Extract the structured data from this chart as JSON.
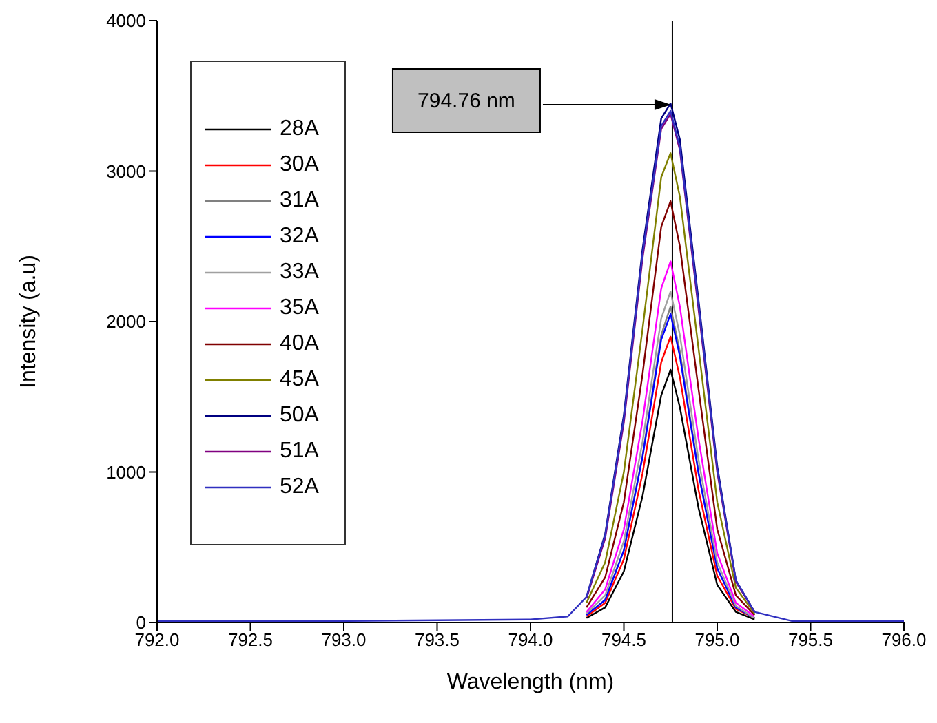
{
  "chart_data": {
    "type": "line",
    "xlabel": "Wavelength (nm)",
    "ylabel": "Intensity (a.u)",
    "x": [
      792,
      793,
      794,
      794.2,
      794.3,
      794.4,
      794.5,
      794.6,
      794.7,
      794.75,
      794.8,
      794.9,
      795.0,
      795.1,
      795.2,
      795.4,
      796
    ],
    "series": [
      {
        "name": "28A",
        "color": "#000000",
        "values": [
          null,
          null,
          null,
          null,
          30,
          100,
          340,
          840,
          1510,
          1680,
          1430,
          760,
          250,
          70,
          20,
          null,
          null
        ]
      },
      {
        "name": "30A",
        "color": "#ff0000",
        "values": [
          null,
          null,
          null,
          null,
          40,
          130,
          420,
          990,
          1730,
          1900,
          1630,
          880,
          310,
          90,
          30,
          null,
          null
        ]
      },
      {
        "name": "31A",
        "color": "#808080",
        "values": [
          null,
          null,
          null,
          null,
          50,
          150,
          480,
          1110,
          1910,
          2100,
          1800,
          1000,
          360,
          100,
          30,
          null,
          null
        ]
      },
      {
        "name": "32A",
        "color": "#0000ff",
        "values": [
          null,
          null,
          null,
          null,
          50,
          150,
          480,
          1100,
          1880,
          2050,
          1770,
          990,
          360,
          100,
          30,
          null,
          null
        ]
      },
      {
        "name": "33A",
        "color": "#a0a0a0",
        "values": [
          null,
          null,
          null,
          null,
          60,
          180,
          540,
          1200,
          2020,
          2200,
          1910,
          1080,
          400,
          110,
          30,
          null,
          null
        ]
      },
      {
        "name": "35A",
        "color": "#ff00ff",
        "values": [
          null,
          null,
          null,
          null,
          70,
          220,
          620,
          1340,
          2220,
          2400,
          2100,
          1220,
          460,
          130,
          40,
          null,
          null
        ]
      },
      {
        "name": "40A",
        "color": "#800000",
        "values": [
          null,
          null,
          null,
          null,
          100,
          300,
          800,
          1650,
          2630,
          2800,
          2500,
          1550,
          620,
          180,
          50,
          null,
          null
        ]
      },
      {
        "name": "45A",
        "color": "#808000",
        "values": [
          null,
          null,
          null,
          null,
          130,
          400,
          1000,
          1950,
          2960,
          3120,
          2830,
          1820,
          800,
          230,
          60,
          null,
          null
        ]
      },
      {
        "name": "50A",
        "color": "#000080",
        "values": [
          null,
          null,
          null,
          null,
          170,
          590,
          1380,
          2480,
          3350,
          3450,
          3210,
          2140,
          1040,
          280,
          70,
          null,
          null
        ]
      },
      {
        "name": "51A",
        "color": "#800080",
        "values": [
          null,
          null,
          null,
          null,
          160,
          560,
          1330,
          2420,
          3280,
          3380,
          3140,
          2080,
          1000,
          270,
          70,
          null,
          null
        ]
      },
      {
        "name": "52A",
        "color": "#3030c0",
        "values": [
          10,
          10,
          20,
          40,
          170,
          580,
          1360,
          2450,
          3300,
          3400,
          3160,
          2110,
          1020,
          280,
          70,
          10,
          10
        ]
      }
    ],
    "xlim": [
      792,
      796
    ],
    "xticks": [
      {
        "value": 792,
        "label": "792.0"
      },
      {
        "value": 792.5,
        "label": "792.5"
      },
      {
        "value": 793,
        "label": "793.0"
      },
      {
        "value": 793.5,
        "label": "793.5"
      },
      {
        "value": 794,
        "label": "794.0"
      },
      {
        "value": 794.5,
        "label": "794.5"
      },
      {
        "value": 795,
        "label": "795.0"
      },
      {
        "value": 795.5,
        "label": "795.5"
      },
      {
        "value": 796,
        "label": "796.0"
      }
    ],
    "ylim": [
      0,
      4000
    ],
    "yticks": [
      0,
      1000,
      2000,
      3000,
      4000
    ],
    "ref_lines": [
      {
        "axis": "x",
        "value": 794.76,
        "color": "#000000"
      }
    ],
    "annotations": [
      "794.76 nm"
    ],
    "legend": "top left",
    "grid": false,
    "marker": "none",
    "line_style": "solid"
  }
}
